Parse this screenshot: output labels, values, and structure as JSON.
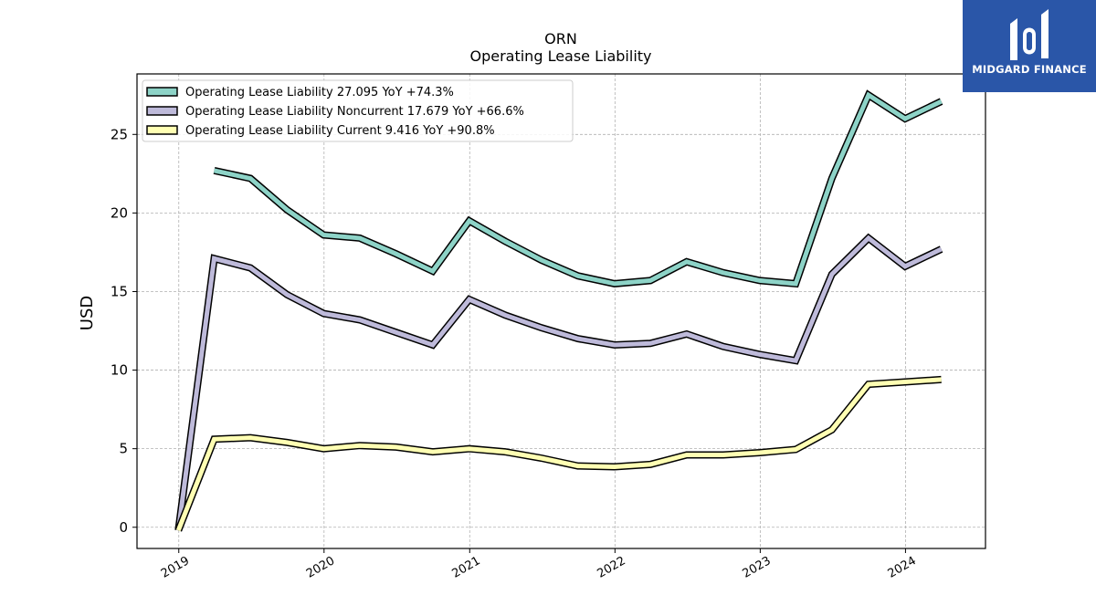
{
  "logo": {
    "text": "MIDGARD FINANCE",
    "background": "#2a56a8"
  },
  "chart_data": {
    "type": "line",
    "title": "ORN",
    "subtitle": "Operating Lease Liability",
    "xlabel": "",
    "ylabel": "USD",
    "x_ticks": [
      "2019",
      "2020",
      "2021",
      "2022",
      "2023",
      "2024"
    ],
    "y_ticks": [
      "0",
      "5",
      "10",
      "15",
      "20",
      "25"
    ],
    "ylim": [
      -1.35,
      28.85
    ],
    "xlim": [
      "2018-09-18",
      "2024-07-20"
    ],
    "grid": true,
    "legend_position": "top-left",
    "x": [
      "2018-12-31",
      "2019-03-31",
      "2019-06-30",
      "2019-09-30",
      "2019-12-31",
      "2020-03-31",
      "2020-06-30",
      "2020-09-30",
      "2020-12-31",
      "2021-03-31",
      "2021-06-30",
      "2021-09-30",
      "2021-12-31",
      "2022-03-31",
      "2022-06-30",
      "2022-09-30",
      "2022-12-31",
      "2023-03-31",
      "2023-06-30",
      "2023-09-30",
      "2023-12-31",
      "2024-03-31"
    ],
    "series": [
      {
        "name": "Operating Lease Liability",
        "legend_label": "Operating Lease Liability  27.095 YoY +74.3%",
        "color": "#8dd3c7",
        "values": [
          null,
          22.7,
          22.2,
          20.2,
          18.6,
          18.4,
          17.4,
          16.3,
          19.5,
          18.2,
          17.0,
          16.0,
          15.5,
          15.7,
          16.9,
          16.2,
          15.7,
          15.5,
          22.2,
          27.5,
          26.0,
          27.1
        ]
      },
      {
        "name": "Operating Lease Liability Noncurrent",
        "legend_label": "Operating Lease Liability Noncurrent  17.679 YoY +66.6%",
        "color": "#bebada",
        "values": [
          -0.2,
          17.1,
          16.5,
          14.8,
          13.6,
          13.2,
          12.4,
          11.6,
          14.5,
          13.5,
          12.7,
          12.0,
          11.6,
          11.7,
          12.3,
          11.5,
          11.0,
          10.6,
          16.1,
          18.4,
          16.6,
          17.7
        ]
      },
      {
        "name": "Operating Lease Liability Current",
        "legend_label": "Operating Lease Liability Current  9.416 YoY +90.8%",
        "color": "#ffffb3",
        "values": [
          -0.2,
          5.6,
          5.7,
          5.4,
          5.0,
          5.2,
          5.1,
          4.8,
          5.0,
          4.8,
          4.4,
          3.9,
          3.85,
          4.0,
          4.6,
          4.6,
          4.75,
          4.95,
          6.2,
          9.1,
          9.25,
          9.4
        ]
      }
    ]
  }
}
